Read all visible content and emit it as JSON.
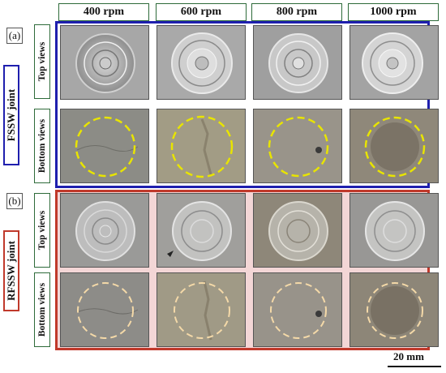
{
  "columns": [
    "400 rpm",
    "600 rpm",
    "800 rpm",
    "1000 rpm"
  ],
  "panel_a": {
    "label": "(a)",
    "joint": "FSSW joint",
    "frame_color": "#1f1fae",
    "rows": [
      "Top views",
      "Bottom views"
    ]
  },
  "panel_b": {
    "label": "(b)",
    "joint": "RFSSW joint",
    "frame_color": "#c0392b",
    "rows": [
      "Top views",
      "Bottom views"
    ]
  },
  "scale_bar": "20 mm",
  "colors": {
    "label_border": "#2e6b3a",
    "fssw_circle": "#e8e400",
    "rfssw_circle": "#f4d9a8"
  }
}
